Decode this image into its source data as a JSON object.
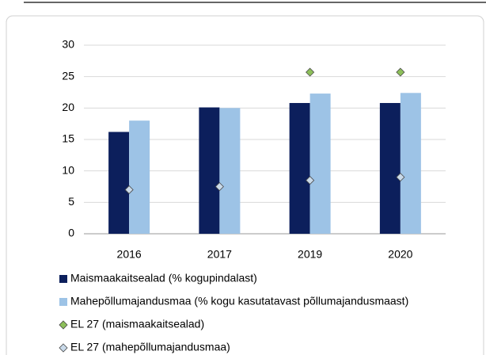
{
  "chart_data": {
    "type": "bar",
    "categories": [
      "2016",
      "2017",
      "2019",
      "2020"
    ],
    "series": [
      {
        "name": "Maismaakaitsealad (% kogupindalast)",
        "color": "#0c1f5c",
        "kind": "bar",
        "values": [
          16.2,
          20.1,
          20.8,
          20.8
        ]
      },
      {
        "name": "Mahepõllumajandusmaa (% kogu kasutatavast põllumajandusmaast)",
        "color": "#9dc3e6",
        "kind": "bar",
        "values": [
          18,
          20,
          22.3,
          22.4
        ]
      },
      {
        "name": "EL 27 (maismaakaitsealad)",
        "color": "#8dbf5a",
        "kind": "marker",
        "values": [
          null,
          null,
          25.7,
          25.7
        ]
      },
      {
        "name": "EL 27 (mahepõllumajandusmaa)",
        "color": "#c9daea",
        "kind": "marker",
        "values": [
          7,
          7.5,
          8.5,
          9
        ]
      }
    ],
    "ylim": [
      0,
      30
    ],
    "yticks": [
      0,
      5,
      10,
      15,
      20,
      25,
      30
    ],
    "grid": true
  }
}
